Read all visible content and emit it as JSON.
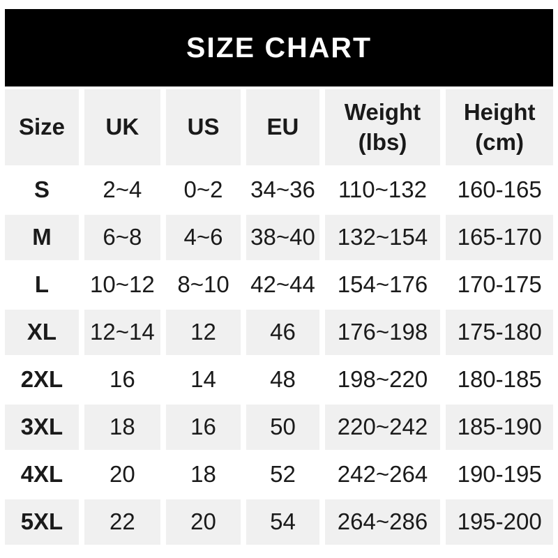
{
  "banner": {
    "title": "SIZE CHART"
  },
  "chart_data": {
    "type": "table",
    "title": "SIZE CHART",
    "columns": [
      {
        "label": "Size",
        "sub": ""
      },
      {
        "label": "UK",
        "sub": ""
      },
      {
        "label": "US",
        "sub": ""
      },
      {
        "label": "EU",
        "sub": ""
      },
      {
        "label": "Weight",
        "sub": "(lbs)"
      },
      {
        "label": "Height",
        "sub": "(cm)"
      }
    ],
    "rows": [
      [
        "S",
        "2~4",
        "0~2",
        "34~36",
        "110~132",
        "160-165"
      ],
      [
        "M",
        "6~8",
        "4~6",
        "38~40",
        "132~154",
        "165-170"
      ],
      [
        "L",
        "10~12",
        "8~10",
        "42~44",
        "154~176",
        "170-175"
      ],
      [
        "XL",
        "12~14",
        "12",
        "46",
        "176~198",
        "175-180"
      ],
      [
        "2XL",
        "16",
        "14",
        "48",
        "198~220",
        "180-185"
      ],
      [
        "3XL",
        "18",
        "16",
        "50",
        "220~242",
        "185-190"
      ],
      [
        "4XL",
        "20",
        "18",
        "52",
        "242~264",
        "190-195"
      ],
      [
        "5XL",
        "22",
        "20",
        "54",
        "264~286",
        "195-200"
      ]
    ]
  },
  "colors": {
    "banner_bg": "#000000",
    "banner_text": "#ffffff",
    "row_stripe_bg": "#f0f0f0",
    "row_bg": "#ffffff",
    "text": "#1a1a1a"
  }
}
